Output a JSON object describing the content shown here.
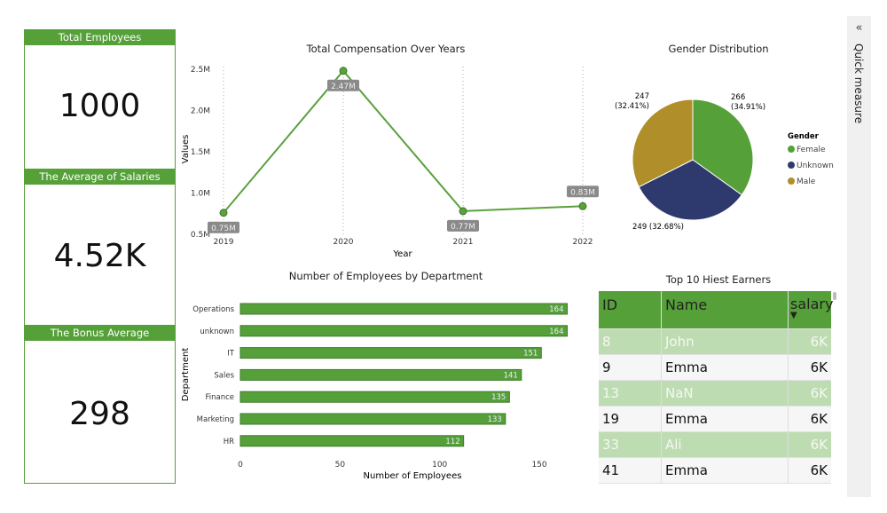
{
  "cards": [
    {
      "label": "Total Employees",
      "value": "1000"
    },
    {
      "label": "The Average of Salaries",
      "value": "4.52K"
    },
    {
      "label": "The Bonus Average",
      "value": "298"
    }
  ],
  "quick_measure": {
    "label": "Quick measure",
    "icon": "double-chevron-left-icon"
  },
  "colors": {
    "accent": "#56a03a",
    "female": "#56a03a",
    "unknown": "#2e3a6e",
    "male": "#b08f2a",
    "highlight_row": "#bedcb2"
  },
  "table": {
    "title": "Top 10 Hiest Earners",
    "columns": [
      "ID",
      "Name",
      "salary"
    ],
    "sort": "salary descending",
    "rows": [
      [
        "8",
        "John",
        "6K"
      ],
      [
        "9",
        "Emma",
        "6K"
      ],
      [
        "13",
        "NaN",
        "6K"
      ],
      [
        "19",
        "Emma",
        "6K"
      ],
      [
        "33",
        "Ali",
        "6K"
      ],
      [
        "41",
        "Emma",
        "6K"
      ]
    ]
  },
  "chart_data": [
    {
      "type": "line",
      "title": "Total Compensation Over Years",
      "xlabel": "Year",
      "ylabel": "Values",
      "x": [
        "2019",
        "2020",
        "2021",
        "2022"
      ],
      "values": [
        0.75,
        2.47,
        0.77,
        0.83
      ],
      "data_labels": [
        "0.75M",
        "2.47M",
        "0.77M",
        "0.83M"
      ],
      "unit": "M",
      "ylim": [
        0.5,
        2.5
      ],
      "yticks": [
        "0.5M",
        "1.0M",
        "1.5M",
        "2.0M",
        "2.5M"
      ],
      "grid": "vertical dotted"
    },
    {
      "type": "pie",
      "title": "Gender Distribution",
      "legend_title": "Gender",
      "legend_position": "right",
      "slices": [
        {
          "name": "Female",
          "value": 266,
          "label": "266",
          "pct": "(34.91%)"
        },
        {
          "name": "Unknown",
          "value": 249,
          "label": "249 (32.68%)",
          "pct": ""
        },
        {
          "name": "Male",
          "value": 247,
          "label": "247",
          "pct": "(32.41%)"
        }
      ]
    },
    {
      "type": "bar",
      "orientation": "horizontal",
      "title": "Number of Employees by Department",
      "xlabel": "Number of Employees",
      "ylabel": "Department",
      "categories": [
        "Operations",
        "unknown",
        "IT",
        "Sales",
        "Finance",
        "Marketing",
        "HR"
      ],
      "values": [
        164,
        164,
        151,
        141,
        135,
        133,
        112
      ],
      "xlim": [
        0,
        170
      ],
      "xticks": [
        "0",
        "50",
        "100",
        "150"
      ]
    }
  ]
}
